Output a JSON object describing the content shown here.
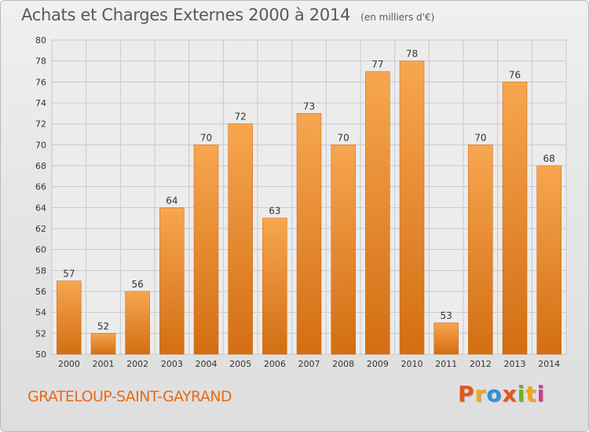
{
  "header": {
    "title": "Achats et Charges Externes 2000 à 2014",
    "subtitle": "(en milliers d'€)"
  },
  "footer": {
    "commune": "GRATELOUP-SAINT-GAYRAND",
    "logo_text": "Proxiti",
    "logo_colors": [
      "#e8541c",
      "#f0a81b",
      "#2f8fd8",
      "#e8541c",
      "#68b42c",
      "#f0a81b",
      "#d53a8f"
    ]
  },
  "colors": {
    "bar_light": "#f7a650",
    "bar_dark": "#d36e12",
    "grid": "#c8c8c8",
    "text": "#333333"
  },
  "chart_data": {
    "type": "bar",
    "categories": [
      "2000",
      "2001",
      "2002",
      "2003",
      "2004",
      "2005",
      "2006",
      "2007",
      "2008",
      "2009",
      "2010",
      "2011",
      "2012",
      "2013",
      "2014"
    ],
    "values": [
      57,
      52,
      56,
      64,
      70,
      72,
      63,
      73,
      70,
      77,
      78,
      53,
      70,
      76,
      68
    ],
    "ylim": [
      50,
      80
    ],
    "yticks": [
      50,
      52,
      54,
      56,
      58,
      60,
      62,
      64,
      66,
      68,
      70,
      72,
      74,
      76,
      78,
      80
    ],
    "grid": true,
    "data_labels": true
  }
}
